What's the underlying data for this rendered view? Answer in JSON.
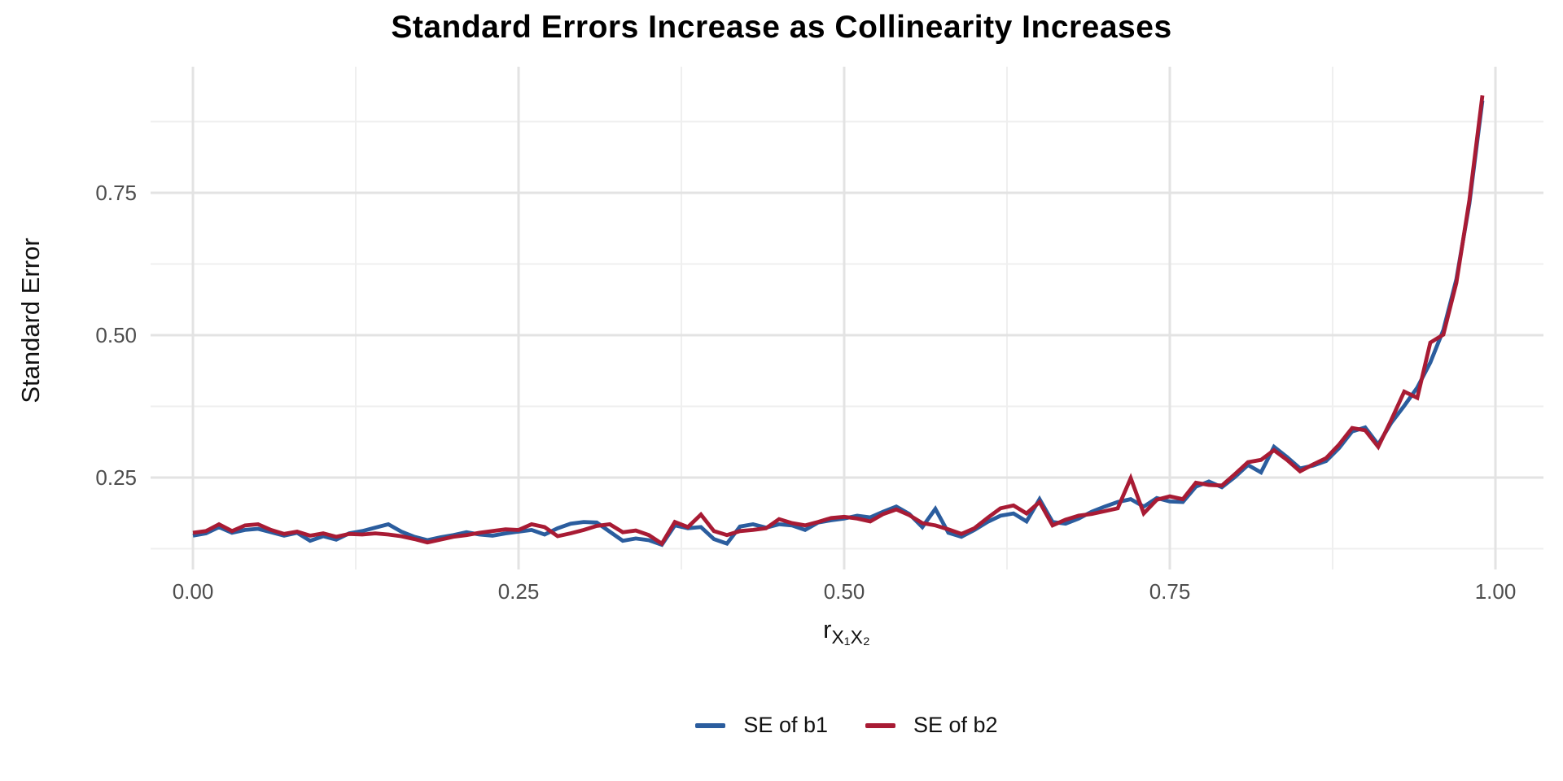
{
  "chart": {
    "title": "Standard Errors Increase as Collinearity Increases",
    "ylabel": "Standard Error",
    "xlabel_base": "r",
    "xlabel_sub": "X₁X₂",
    "colors": {
      "b1_blue": "#2B5D9E",
      "b2_red": "#A81B34",
      "grid_major": "#e3e3e3",
      "grid_minor": "#efefef",
      "tick_text": "#4d4d4d"
    },
    "legend": [
      {
        "label": "SE of b1",
        "color": "#2B5D9E"
      },
      {
        "label": "SE of b2",
        "color": "#A81B34"
      }
    ]
  },
  "chart_data": {
    "type": "line",
    "title": "Standard Errors Increase as Collinearity Increases",
    "xlabel": "r_{X1X2}",
    "ylabel": "Standard Error",
    "legend_position": "bottom",
    "grid": "major+minor, no axis lines (minimal theme)",
    "x_ticks": {
      "values": [
        0,
        0.25,
        0.5,
        0.75,
        1.0
      ],
      "labels": [
        "0.00",
        "0.25",
        "0.50",
        "0.75",
        "1.00"
      ]
    },
    "y_ticks": {
      "values": [
        0.25,
        0.5,
        0.75
      ],
      "labels": [
        "0.25",
        "0.50",
        "0.75"
      ]
    },
    "x_minor_ticks": [
      0.125,
      0.375,
      0.625,
      0.875
    ],
    "y_minor_ticks": [
      0.125,
      0.375,
      0.625,
      0.875
    ],
    "xlim": [
      -0.045,
      1.04
    ],
    "ylim": [
      0.088,
      0.97
    ],
    "x": [
      0.0,
      0.01,
      0.02,
      0.03,
      0.04,
      0.05,
      0.06,
      0.07,
      0.08,
      0.09,
      0.1,
      0.11,
      0.12,
      0.13,
      0.14,
      0.15,
      0.16,
      0.17,
      0.18,
      0.19,
      0.2,
      0.21,
      0.22,
      0.23,
      0.24,
      0.25,
      0.26,
      0.27,
      0.28,
      0.29,
      0.3,
      0.31,
      0.32,
      0.33,
      0.34,
      0.35,
      0.36,
      0.37,
      0.38,
      0.39,
      0.4,
      0.41,
      0.42,
      0.43,
      0.44,
      0.45,
      0.46,
      0.47,
      0.48,
      0.49,
      0.5,
      0.51,
      0.52,
      0.53,
      0.54,
      0.55,
      0.56,
      0.57,
      0.58,
      0.59,
      0.6,
      0.61,
      0.62,
      0.63,
      0.64,
      0.65,
      0.66,
      0.67,
      0.68,
      0.69,
      0.7,
      0.71,
      0.72,
      0.73,
      0.74,
      0.75,
      0.76,
      0.77,
      0.78,
      0.79,
      0.8,
      0.81,
      0.82,
      0.83,
      0.84,
      0.85,
      0.86,
      0.87,
      0.88,
      0.89,
      0.9,
      0.91,
      0.92,
      0.93,
      0.94,
      0.95,
      0.96,
      0.97,
      0.98,
      0.99
    ],
    "series": [
      {
        "name": "SE of b1",
        "color": "#2B5D9E",
        "values": [
          0.148,
          0.152,
          0.163,
          0.153,
          0.158,
          0.16,
          0.154,
          0.148,
          0.153,
          0.139,
          0.147,
          0.141,
          0.152,
          0.156,
          0.162,
          0.168,
          0.155,
          0.146,
          0.14,
          0.145,
          0.149,
          0.154,
          0.15,
          0.148,
          0.152,
          0.155,
          0.158,
          0.15,
          0.161,
          0.169,
          0.172,
          0.171,
          0.155,
          0.139,
          0.143,
          0.14,
          0.132,
          0.166,
          0.161,
          0.163,
          0.142,
          0.134,
          0.164,
          0.168,
          0.162,
          0.168,
          0.166,
          0.158,
          0.171,
          0.175,
          0.178,
          0.183,
          0.18,
          0.19,
          0.199,
          0.186,
          0.163,
          0.195,
          0.153,
          0.146,
          0.158,
          0.172,
          0.183,
          0.187,
          0.173,
          0.212,
          0.172,
          0.169,
          0.178,
          0.19,
          0.199,
          0.207,
          0.212,
          0.199,
          0.214,
          0.208,
          0.207,
          0.234,
          0.243,
          0.233,
          0.251,
          0.272,
          0.259,
          0.304,
          0.286,
          0.266,
          0.271,
          0.279,
          0.302,
          0.331,
          0.338,
          0.308,
          0.346,
          0.376,
          0.408,
          0.452,
          0.509,
          0.598,
          0.731,
          0.912
        ]
      },
      {
        "name": "SE of b2",
        "color": "#A81B34",
        "values": [
          0.153,
          0.156,
          0.168,
          0.156,
          0.166,
          0.168,
          0.158,
          0.151,
          0.155,
          0.148,
          0.152,
          0.146,
          0.151,
          0.15,
          0.152,
          0.15,
          0.147,
          0.142,
          0.136,
          0.141,
          0.146,
          0.149,
          0.153,
          0.156,
          0.159,
          0.158,
          0.168,
          0.163,
          0.147,
          0.152,
          0.158,
          0.165,
          0.168,
          0.154,
          0.157,
          0.149,
          0.134,
          0.172,
          0.163,
          0.185,
          0.156,
          0.149,
          0.156,
          0.158,
          0.161,
          0.177,
          0.17,
          0.166,
          0.172,
          0.179,
          0.181,
          0.178,
          0.173,
          0.186,
          0.194,
          0.184,
          0.17,
          0.166,
          0.159,
          0.151,
          0.161,
          0.179,
          0.196,
          0.201,
          0.187,
          0.207,
          0.166,
          0.176,
          0.183,
          0.186,
          0.191,
          0.196,
          0.249,
          0.187,
          0.211,
          0.217,
          0.212,
          0.241,
          0.237,
          0.236,
          0.256,
          0.277,
          0.281,
          0.298,
          0.281,
          0.261,
          0.273,
          0.284,
          0.308,
          0.337,
          0.333,
          0.304,
          0.351,
          0.401,
          0.39,
          0.487,
          0.501,
          0.592,
          0.737,
          0.921
        ]
      }
    ]
  }
}
